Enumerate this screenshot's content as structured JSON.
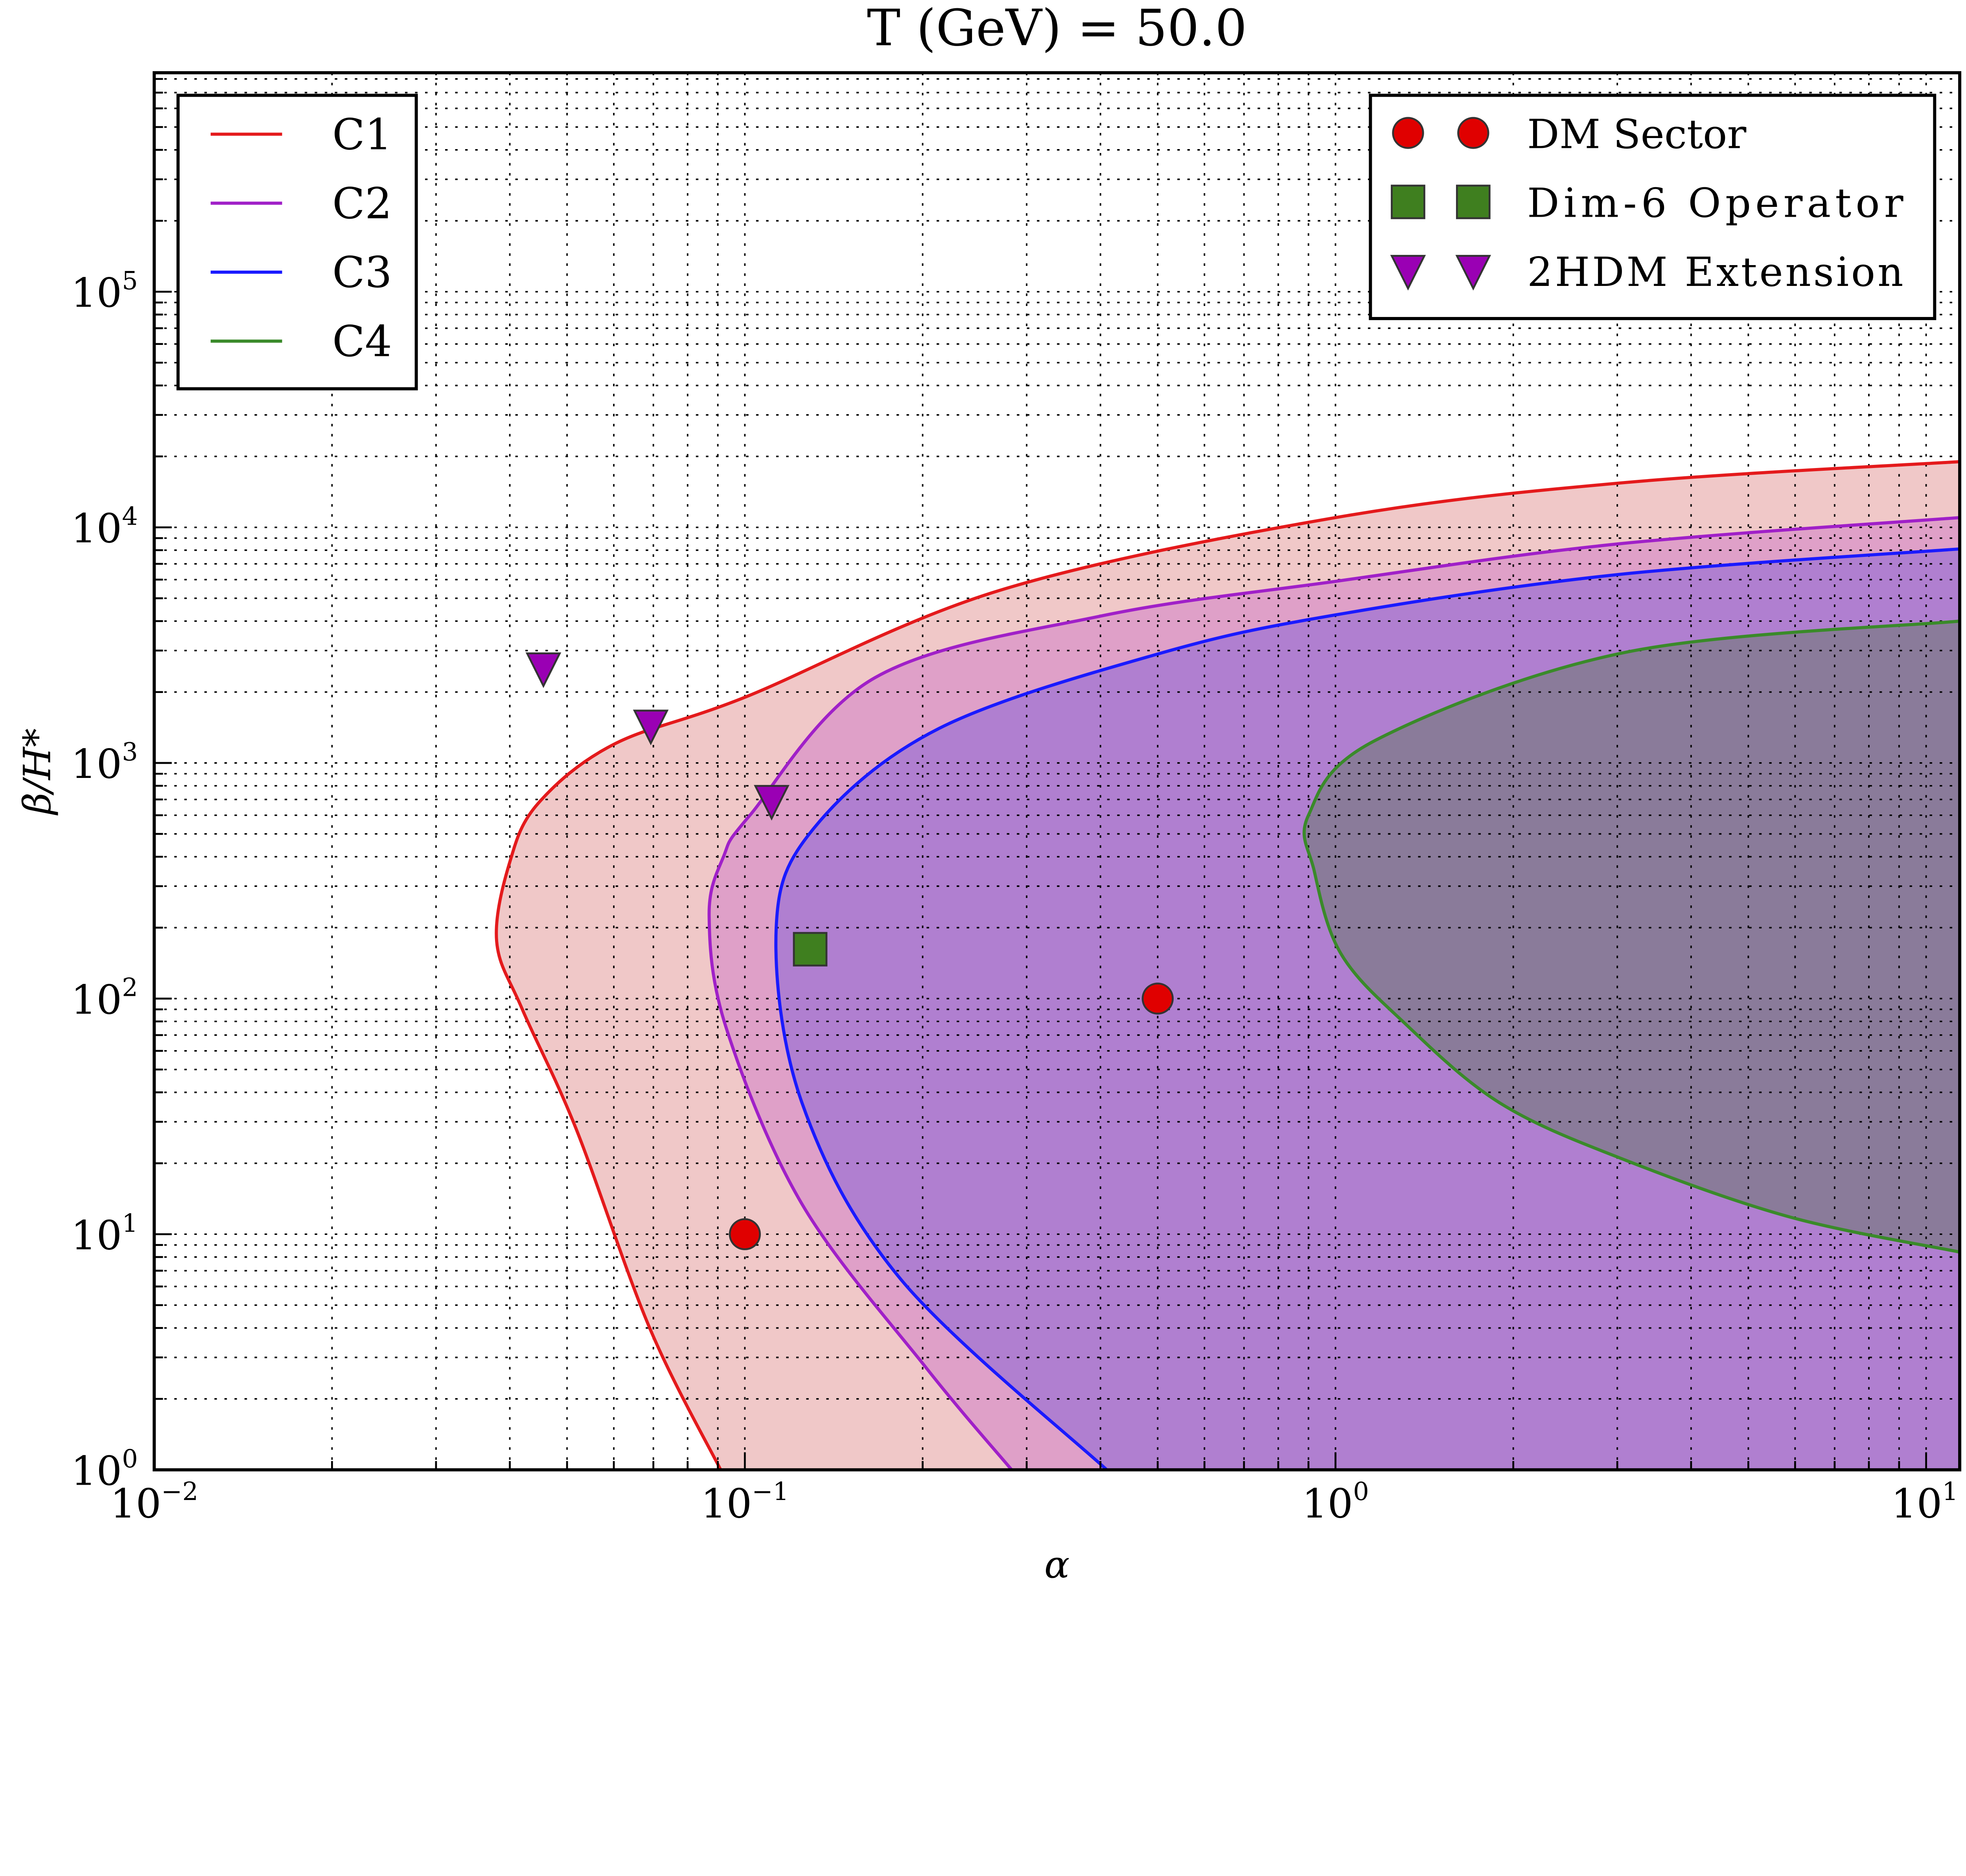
{
  "chart_data": {
    "type": "area",
    "title": "T (GeV) = 50.0",
    "xlabel": "α",
    "ylabel": "β/H*",
    "xscale": "log",
    "yscale": "log",
    "xlim": [
      0.01,
      11.4
    ],
    "ylim": [
      1,
      850000
    ],
    "grid": true,
    "x_ticks": [
      {
        "v": 0.01,
        "b": "10",
        "e": "−2"
      },
      {
        "v": 0.1,
        "b": "10",
        "e": "−1"
      },
      {
        "v": 1,
        "b": "10",
        "e": "0"
      },
      {
        "v": 10,
        "b": "10",
        "e": "1"
      }
    ],
    "y_ticks": [
      {
        "v": 1,
        "b": "10",
        "e": "0"
      },
      {
        "v": 10,
        "b": "10",
        "e": "1"
      },
      {
        "v": 100,
        "b": "10",
        "e": "2"
      },
      {
        "v": 1000,
        "b": "10",
        "e": "3"
      },
      {
        "v": 10000,
        "b": "10",
        "e": "4"
      },
      {
        "v": 100000,
        "b": "10",
        "e": "5"
      }
    ],
    "contours": [
      {
        "name": "C1",
        "line": "#e41a1c",
        "fill": "#f0c8c8",
        "points": [
          [
            0.091,
            1
          ],
          [
            0.069,
            4
          ],
          [
            0.0518,
            28
          ],
          [
            0.042,
            90
          ],
          [
            0.038,
            175
          ],
          [
            0.04,
            380
          ],
          [
            0.0447,
            675
          ],
          [
            0.06,
            1200
          ],
          [
            0.1,
            1900
          ],
          [
            0.27,
            5400
          ],
          [
            1,
            11000
          ],
          [
            3.1,
            15500
          ],
          [
            11.4,
            19000
          ]
        ]
      },
      {
        "name": "C2",
        "line": "#a020c8",
        "fill": "#dfa0c8",
        "points": [
          [
            0.283,
            1
          ],
          [
            0.203,
            2.7
          ],
          [
            0.125,
            13.4
          ],
          [
            0.093,
            75
          ],
          [
            0.087,
            224
          ],
          [
            0.092,
            400
          ],
          [
            0.102,
            600
          ],
          [
            0.166,
            2300
          ],
          [
            0.4,
            4200
          ],
          [
            1,
            5900
          ],
          [
            3,
            8500
          ],
          [
            11.4,
            11000
          ]
        ]
      },
      {
        "name": "C3",
        "line": "#1a1aff",
        "fill": "#b07fd0",
        "points": [
          [
            0.41,
            1
          ],
          [
            0.184,
            6.4
          ],
          [
            0.125,
            36
          ],
          [
            0.113,
            200
          ],
          [
            0.131,
            530
          ],
          [
            0.213,
            1400
          ],
          [
            0.5,
            2900
          ],
          [
            1,
            4250
          ],
          [
            3,
            6300
          ],
          [
            11.4,
            8100
          ]
        ]
      },
      {
        "name": "C4",
        "line": "#3a8a2a",
        "fill": "#8a7b9a",
        "points": [
          [
            11.4,
            8.4
          ],
          [
            5.9,
            11.8
          ],
          [
            3.1,
            20.6
          ],
          [
            1.9,
            36
          ],
          [
            1.3,
            80
          ],
          [
            1.02,
            156
          ],
          [
            0.92,
            350
          ],
          [
            0.9,
            600
          ],
          [
            1.17,
            1250
          ],
          [
            3.1,
            2950
          ],
          [
            11.4,
            4000
          ]
        ]
      }
    ],
    "markers": [
      {
        "name": "DM Sector",
        "shape": "circle",
        "color": "#e00000",
        "points": [
          [
            0.1,
            10
          ],
          [
            0.5,
            100
          ]
        ]
      },
      {
        "name": "Dim-6 Operator",
        "shape": "square",
        "color": "#3f7f1f",
        "points": [
          [
            0.129,
            162
          ]
        ]
      },
      {
        "name": "2HDM Extension",
        "shape": "triangle-down",
        "color": "#9a00b4",
        "points": [
          [
            0.0456,
            2520
          ],
          [
            0.0693,
            1440
          ],
          [
            0.111,
            690
          ]
        ]
      }
    ],
    "legend_lines": {
      "placement": "top-left",
      "entries": [
        "C1",
        "C2",
        "C3",
        "C4"
      ]
    },
    "legend_markers": {
      "placement": "top-right",
      "entries": [
        "DM Sector",
        "Dim-6 Operator",
        "2HDM Extension"
      ]
    }
  }
}
